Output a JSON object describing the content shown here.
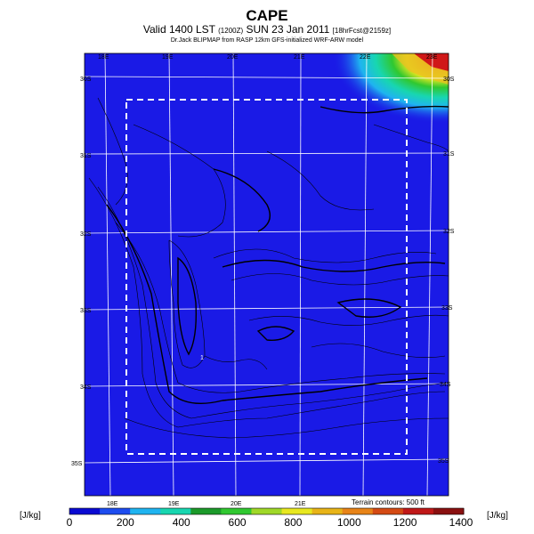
{
  "header": {
    "title": "CAPE",
    "subtitle_main": "Valid 1400 LST",
    "subtitle_small1": "(1200Z)",
    "subtitle_date": "SUN 23 Jan 2011",
    "subtitle_small2": "[18hrFcst@2159z]",
    "credit": "Dr.Jack BLIPMAP from RASP 12km GFS-initialized WRF-ARW model"
  },
  "map": {
    "lon_labels_top": [
      "18E",
      "19E",
      "20E",
      "21E",
      "22E",
      "23E"
    ],
    "lon_labels_bottom": [
      "18E",
      "19E",
      "20E",
      "21E"
    ],
    "lat_labels_left": [
      "30S",
      "31S",
      "32S",
      "33S",
      "34S",
      "35S"
    ],
    "lat_labels_right": [
      "30S",
      "31S",
      "32S",
      "33S",
      "34S",
      "35S"
    ],
    "contour_marker": "1",
    "terrain_note": "Terrain contours: 500 ft"
  },
  "legend": {
    "unit_left": "[J/kg]",
    "unit_right": "[J/kg]",
    "tick_labels": [
      "0",
      "200",
      "400",
      "600",
      "800",
      "1000",
      "1200",
      "1400"
    ],
    "colors": [
      "#0a0ad2",
      "#1d4cef",
      "#1fb4f0",
      "#18d6b0",
      "#1c9a2a",
      "#30c830",
      "#a0d828",
      "#e8e820",
      "#e8b418",
      "#e88418",
      "#d44a14",
      "#c01818",
      "#8a1010"
    ]
  },
  "colors": {
    "background": "#1a1ae6",
    "ocean_high": "#ff0000"
  }
}
